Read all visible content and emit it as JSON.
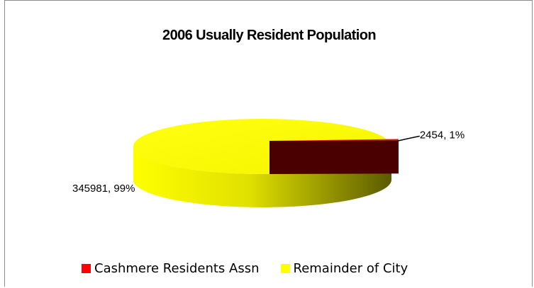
{
  "chart_data": {
    "type": "pie",
    "style": "3d-exploded",
    "title": "2006 Usually Resident Population",
    "series": [
      {
        "slices": [
          {
            "label": "Cashmere Residents Assn",
            "value": 2454,
            "percent": "1%",
            "data_label": "2454, 1%",
            "color": "#ff0000",
            "side_color": "#6e0000"
          },
          {
            "label": "Remainder of City",
            "value": 345981,
            "percent": "99%",
            "data_label": "345981, 99%",
            "color": "#ffff00",
            "side_color": "#8a8a00"
          }
        ]
      }
    ],
    "legend_position": "bottom"
  }
}
